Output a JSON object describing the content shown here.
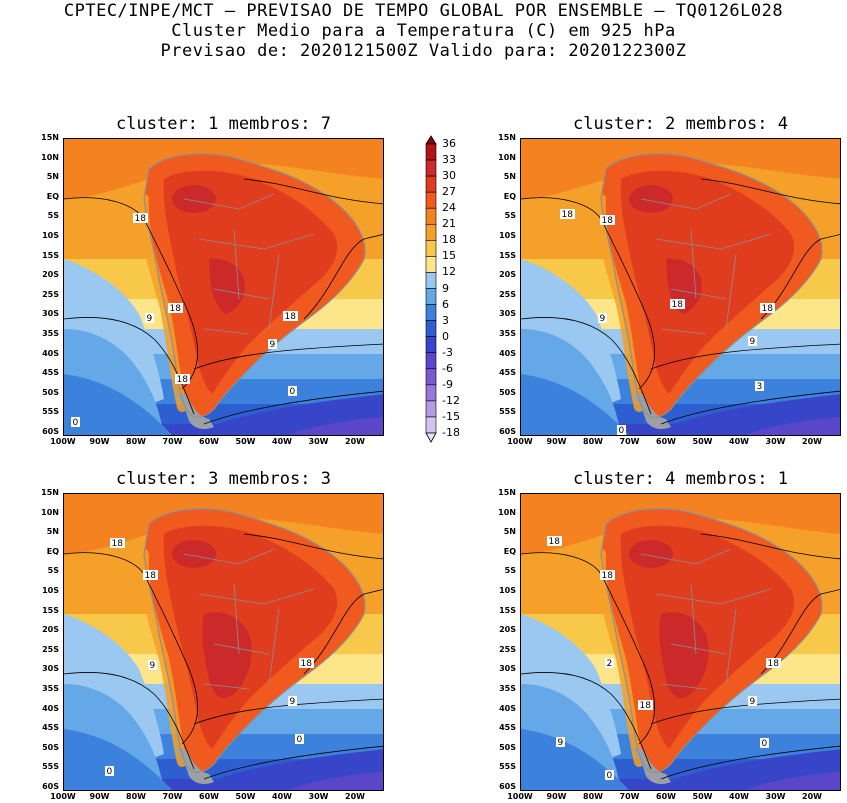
{
  "header": {
    "line1": "CPTEC/INPE/MCT – PREVISAO DE TEMPO GLOBAL POR ENSEMBLE – TQ0126L028",
    "line2": "Cluster Medio para a Temperatura (C) em 925 hPa",
    "line3": "Previsao de: 2020121500Z   Valido para: 2020122300Z"
  },
  "panels": [
    {
      "title": "cluster: 1  membros: 7",
      "labels": [
        "18",
        "18",
        "18",
        "18",
        "9",
        "9",
        "0",
        "0"
      ]
    },
    {
      "title": "cluster: 2  membros: 4",
      "labels": [
        "18",
        "18",
        "18",
        "18",
        "9",
        "9",
        "3",
        "0"
      ]
    },
    {
      "title": "cluster: 3  membros: 3",
      "labels": [
        "18",
        "18",
        "18",
        "9",
        "9",
        "0",
        "0"
      ]
    },
    {
      "title": "cluster: 4  membros: 1",
      "labels": [
        "18",
        "18",
        "18",
        "18",
        "2",
        "9",
        "9",
        "0",
        "0"
      ]
    }
  ],
  "axes": {
    "lat_ticks": [
      "15N",
      "10N",
      "5N",
      "EQ",
      "5S",
      "10S",
      "15S",
      "20S",
      "25S",
      "30S",
      "35S",
      "40S",
      "45S",
      "50S",
      "55S",
      "60S"
    ],
    "lon_ticks": [
      "100W",
      "90W",
      "80W",
      "70W",
      "60W",
      "50W",
      "40W",
      "30W",
      "20W"
    ]
  },
  "colorbar": {
    "levels": [
      "36",
      "33",
      "30",
      "27",
      "24",
      "21",
      "18",
      "15",
      "12",
      "9",
      "6",
      "3",
      "0",
      "-3",
      "-6",
      "-9",
      "-12",
      "-15",
      "-18"
    ],
    "colors": [
      "#8b0000",
      "#b31414",
      "#cc2a2a",
      "#e03c1e",
      "#f05a1e",
      "#f58220",
      "#f5a028",
      "#f8c84a",
      "#fde68a",
      "#9bc8f0",
      "#64a8e8",
      "#3c82dc",
      "#2e5fd0",
      "#3746c8",
      "#5a46c8",
      "#7a5ad2",
      "#9678dc",
      "#b49be6",
      "#d2c3f0",
      "#ebe1fa"
    ]
  }
}
